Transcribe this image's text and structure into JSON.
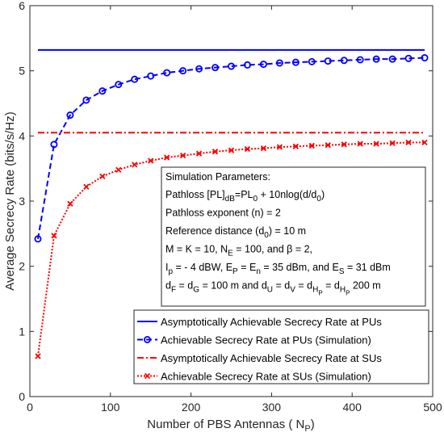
{
  "chart_data": {
    "type": "line",
    "xlabel": "Number of PBS Antennas ( N",
    "xlabel_sub": "P",
    "xlabel_close": ")",
    "ylabel": "Average Secrecy Rate (bits/s/Hz)",
    "xlim": [
      0,
      500
    ],
    "ylim": [
      0,
      6
    ],
    "xticks": [
      0,
      100,
      200,
      300,
      400,
      500
    ],
    "yticks": [
      0,
      1,
      2,
      3,
      4,
      5,
      6
    ],
    "grid": false,
    "legend_position": "bottom-right",
    "series": [
      {
        "name": "Asymptotically Achievable Secrecy Rate at PUs",
        "style": "solid",
        "marker": "none",
        "color": "#0000ff",
        "x": [
          10,
          490
        ],
        "y": [
          5.32,
          5.32
        ]
      },
      {
        "name": "Achievable Secrecy Rate at PUs (Simulation)",
        "style": "dashed",
        "marker": "circle",
        "color": "#0000ff",
        "x": [
          10,
          30,
          50,
          70,
          90,
          110,
          130,
          150,
          170,
          190,
          210,
          230,
          250,
          270,
          290,
          310,
          330,
          350,
          370,
          390,
          410,
          430,
          450,
          470,
          490
        ],
        "y": [
          2.42,
          3.87,
          4.32,
          4.55,
          4.69,
          4.79,
          4.87,
          4.92,
          4.97,
          5.0,
          5.03,
          5.05,
          5.07,
          5.09,
          5.1,
          5.12,
          5.13,
          5.14,
          5.15,
          5.16,
          5.17,
          5.18,
          5.18,
          5.19,
          5.2
        ]
      },
      {
        "name": "Asymptotically Achievable Secrecy Rate at SUs",
        "style": "dashdot",
        "marker": "none",
        "color": "#ff0000",
        "x": [
          10,
          490
        ],
        "y": [
          4.05,
          4.05
        ]
      },
      {
        "name": "Achievable Secrecy Rate at SUs (Simulation)",
        "style": "dotted",
        "marker": "x",
        "color": "#ff0000",
        "x": [
          10,
          30,
          50,
          70,
          90,
          110,
          130,
          150,
          170,
          190,
          210,
          230,
          250,
          270,
          290,
          310,
          330,
          350,
          370,
          390,
          410,
          430,
          450,
          470,
          490
        ],
        "y": [
          0.62,
          2.47,
          2.96,
          3.22,
          3.38,
          3.48,
          3.56,
          3.62,
          3.67,
          3.7,
          3.73,
          3.76,
          3.78,
          3.8,
          3.81,
          3.83,
          3.84,
          3.85,
          3.86,
          3.87,
          3.88,
          3.88,
          3.89,
          3.9,
          3.9
        ]
      }
    ],
    "annotation": {
      "title": "Simulation Parameters:",
      "lines": [
        [
          {
            "t": "Pathloss [PL]"
          },
          {
            "t": "dB",
            "sub": true
          },
          {
            "t": "=PL"
          },
          {
            "t": "0",
            "sub": true
          },
          {
            "t": " + 10nlog(d/d"
          },
          {
            "t": "0",
            "sub": true
          },
          {
            "t": ")"
          }
        ],
        [
          {
            "t": "Pathloss exponent (n) = 2"
          }
        ],
        [
          {
            "t": "Reference distance (d"
          },
          {
            "t": "0",
            "sub": true
          },
          {
            "t": ") = 10 m"
          }
        ],
        [
          {
            "t": "M = K = 10, N"
          },
          {
            "t": "E",
            "sub": true
          },
          {
            "t": " = 100, and β = 2,"
          }
        ],
        [
          {
            "t": "I"
          },
          {
            "t": "p",
            "sub": true
          },
          {
            "t": " = - 4 dBW, E"
          },
          {
            "t": "P",
            "sub": true
          },
          {
            "t": " = E"
          },
          {
            "t": "n",
            "sub": true
          },
          {
            "t": " = 35 dBm, and E"
          },
          {
            "t": "S",
            "sub": true
          },
          {
            "t": " = 31 dBm"
          }
        ],
        [
          {
            "t": "d"
          },
          {
            "t": "F",
            "sub": true
          },
          {
            "t": " = d"
          },
          {
            "t": "G",
            "sub": true
          },
          {
            "t": " = 100 m and d"
          },
          {
            "t": "U",
            "sub": true
          },
          {
            "t": " = d"
          },
          {
            "t": "V",
            "sub": true
          },
          {
            "t": " = d"
          },
          {
            "t": "H",
            "sub": true
          },
          {
            "t": "P",
            "sub2": true
          },
          {
            "t": " = d"
          },
          {
            "t": "H",
            "sub": true
          },
          {
            "t": "P",
            "sub2": true
          },
          {
            "t": "  200 m"
          }
        ]
      ]
    }
  }
}
